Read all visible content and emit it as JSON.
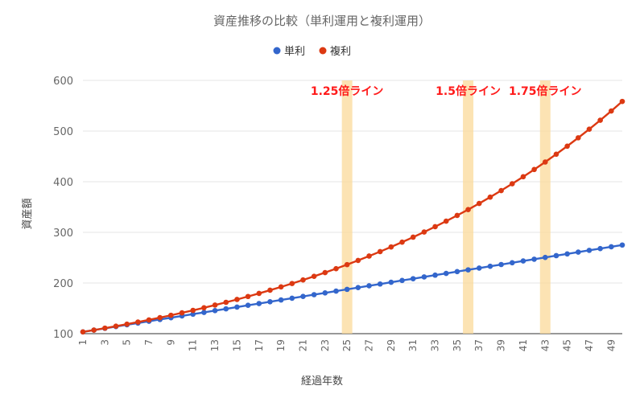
{
  "chart_data": {
    "type": "line",
    "title": "資産推移の比較（単利運用と複利運用）",
    "xlabel": "経過年数",
    "ylabel": "資産額",
    "ylim": [
      100,
      600
    ],
    "yticks": [
      100,
      200,
      300,
      400,
      500,
      600
    ],
    "xlim": [
      1,
      50
    ],
    "xticks": [
      1,
      3,
      5,
      7,
      9,
      11,
      13,
      15,
      17,
      19,
      21,
      23,
      25,
      27,
      29,
      31,
      33,
      35,
      37,
      39,
      41,
      43,
      45,
      47,
      49
    ],
    "grid": true,
    "legend_position": "top",
    "x": [
      1,
      2,
      3,
      4,
      5,
      6,
      7,
      8,
      9,
      10,
      11,
      12,
      13,
      14,
      15,
      16,
      17,
      18,
      19,
      20,
      21,
      22,
      23,
      24,
      25,
      26,
      27,
      28,
      29,
      30,
      31,
      32,
      33,
      34,
      35,
      36,
      37,
      38,
      39,
      40,
      41,
      42,
      43,
      44,
      45,
      46,
      47,
      48,
      49,
      50
    ],
    "series": [
      {
        "name": "単利",
        "color": "#3366cc",
        "values": [
          103.5,
          107,
          110.5,
          114,
          117.5,
          121,
          124.5,
          128,
          131.5,
          135,
          138.5,
          142,
          145.5,
          149,
          152.5,
          156,
          159.5,
          163,
          166.5,
          170,
          173.5,
          177,
          180.5,
          184,
          187.5,
          191,
          194.5,
          198,
          201.5,
          205,
          208.5,
          212,
          215.5,
          219,
          222.5,
          226,
          229.5,
          233,
          236.5,
          240,
          243.5,
          247,
          250.5,
          254,
          257.5,
          261,
          264.5,
          268,
          271.5,
          275
        ]
      },
      {
        "name": "複利",
        "color": "#dc3912",
        "values": [
          103.5,
          107.1,
          110.9,
          114.8,
          118.8,
          122.9,
          127.2,
          131.7,
          136.3,
          141.1,
          146,
          151.1,
          156.4,
          161.9,
          167.5,
          173.4,
          179.5,
          185.8,
          192.3,
          199,
          206,
          213.2,
          220.6,
          228.3,
          236.3,
          244.6,
          253.2,
          262,
          271.2,
          280.7,
          290.5,
          300.7,
          311.2,
          322.1,
          333.4,
          345,
          357.1,
          369.6,
          382.5,
          395.9,
          409.8,
          424.1,
          438.9,
          454.3,
          470.2,
          486.7,
          503.7,
          521.3,
          539.6,
          558.5
        ]
      }
    ],
    "bands": [
      {
        "x": 25,
        "label": "1.25倍ライン"
      },
      {
        "x": 36,
        "label": "1.5倍ライン"
      },
      {
        "x": 43,
        "label": "1.75倍ライン"
      }
    ]
  }
}
